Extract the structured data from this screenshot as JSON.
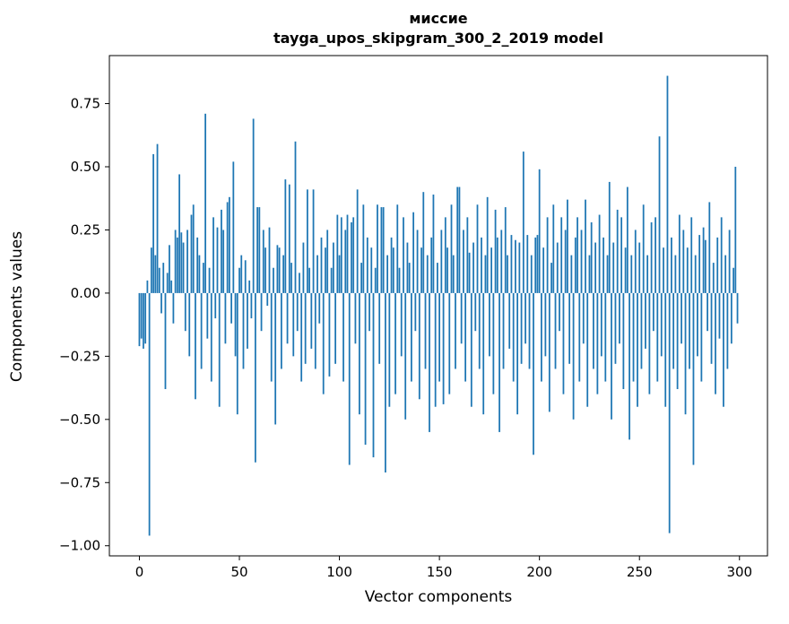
{
  "chart_data": {
    "type": "bar",
    "title_line1": "миссие",
    "title_line2": "tayga_upos_skipgram_300_2_2019 model",
    "xlabel": "Vector components",
    "ylabel": "Components values",
    "bar_color": "#1f77b4",
    "axis_color": "#000000",
    "xlim": [
      -15,
      314
    ],
    "ylim": [
      -1.04,
      0.94
    ],
    "xticks": [
      0,
      50,
      100,
      150,
      200,
      250,
      300
    ],
    "xtick_labels": [
      "0",
      "50",
      "100",
      "150",
      "200",
      "250",
      "300"
    ],
    "ytick_values": [
      0.75,
      0.5,
      0.25,
      0.0,
      -0.25,
      -0.5,
      -0.75,
      -1.0
    ],
    "ytick_labels": [
      "0.75",
      "0.50",
      "0.25",
      "0.00",
      "−0.25",
      "−0.50",
      "−0.75",
      "−1.00"
    ],
    "grid": false,
    "legend": "none",
    "values": [
      -0.21,
      -0.18,
      -0.22,
      -0.2,
      0.05,
      -0.96,
      0.18,
      0.55,
      0.15,
      0.59,
      0.1,
      -0.08,
      0.12,
      -0.38,
      0.08,
      0.19,
      0.05,
      -0.12,
      0.25,
      0.22,
      0.47,
      0.24,
      0.2,
      -0.15,
      0.25,
      -0.25,
      0.31,
      0.35,
      -0.42,
      0.22,
      0.15,
      -0.3,
      0.12,
      0.71,
      -0.18,
      0.1,
      -0.35,
      0.3,
      -0.1,
      0.26,
      -0.45,
      0.33,
      0.25,
      -0.2,
      0.36,
      0.38,
      -0.12,
      0.52,
      -0.25,
      -0.48,
      0.1,
      0.15,
      -0.3,
      0.13,
      -0.22,
      0.05,
      -0.1,
      0.69,
      -0.67,
      0.34,
      0.34,
      -0.15,
      0.25,
      0.18,
      -0.05,
      0.26,
      -0.35,
      0.1,
      -0.52,
      0.19,
      0.18,
      -0.3,
      0.15,
      0.45,
      -0.2,
      0.43,
      0.12,
      -0.25,
      0.6,
      -0.15,
      0.08,
      -0.35,
      0.2,
      -0.28,
      0.41,
      0.1,
      -0.22,
      0.41,
      -0.3,
      0.15,
      -0.12,
      0.22,
      -0.4,
      0.18,
      0.25,
      -0.33,
      0.1,
      0.2,
      -0.28,
      0.31,
      0.15,
      0.3,
      -0.35,
      0.25,
      0.31,
      -0.68,
      0.28,
      0.3,
      -0.2,
      0.41,
      -0.48,
      0.12,
      0.35,
      -0.6,
      0.22,
      -0.15,
      0.18,
      -0.65,
      0.1,
      0.35,
      -0.28,
      0.34,
      0.34,
      -0.71,
      0.15,
      -0.45,
      0.22,
      0.18,
      -0.4,
      0.35,
      0.1,
      -0.25,
      0.3,
      -0.5,
      0.2,
      0.12,
      -0.35,
      0.32,
      -0.15,
      0.25,
      -0.42,
      0.18,
      0.4,
      -0.3,
      0.15,
      -0.55,
      0.22,
      0.39,
      -0.45,
      0.12,
      -0.35,
      0.25,
      -0.44,
      0.3,
      0.18,
      -0.4,
      0.35,
      0.15,
      -0.3,
      0.42,
      0.42,
      -0.2,
      0.25,
      -0.35,
      0.3,
      0.16,
      -0.45,
      0.2,
      -0.15,
      0.35,
      -0.3,
      0.22,
      -0.48,
      0.15,
      0.38,
      -0.25,
      0.18,
      -0.4,
      0.33,
      0.22,
      -0.55,
      0.25,
      -0.3,
      0.34,
      0.15,
      -0.22,
      0.23,
      -0.35,
      0.21,
      -0.48,
      0.2,
      -0.28,
      0.56,
      -0.2,
      0.23,
      -0.3,
      0.15,
      -0.64,
      0.22,
      0.23,
      0.49,
      -0.35,
      0.18,
      -0.25,
      0.3,
      -0.47,
      0.12,
      0.35,
      -0.3,
      0.2,
      -0.15,
      0.3,
      -0.4,
      0.25,
      0.37,
      -0.28,
      0.15,
      -0.5,
      0.22,
      0.3,
      -0.35,
      0.25,
      -0.2,
      0.37,
      -0.45,
      0.15,
      0.28,
      -0.3,
      0.2,
      -0.4,
      0.31,
      -0.25,
      0.22,
      -0.35,
      0.15,
      0.44,
      -0.5,
      0.2,
      -0.28,
      0.33,
      -0.2,
      0.3,
      -0.38,
      0.18,
      0.42,
      -0.58,
      0.15,
      -0.35,
      0.25,
      -0.45,
      0.2,
      -0.3,
      0.35,
      -0.22,
      0.15,
      -0.4,
      0.28,
      -0.15,
      0.3,
      -0.35,
      0.62,
      -0.25,
      0.18,
      -0.45,
      0.86,
      -0.95,
      0.22,
      -0.3,
      0.15,
      -0.38,
      0.31,
      -0.2,
      0.25,
      -0.48,
      0.18,
      -0.3,
      0.3,
      -0.68,
      0.15,
      -0.25,
      0.23,
      -0.35,
      0.26,
      0.21,
      -0.15,
      0.36,
      -0.28,
      0.12,
      -0.4,
      0.22,
      -0.18,
      0.3,
      -0.45,
      0.15,
      -0.3,
      0.25,
      -0.2,
      0.1,
      0.5,
      -0.12
    ]
  }
}
